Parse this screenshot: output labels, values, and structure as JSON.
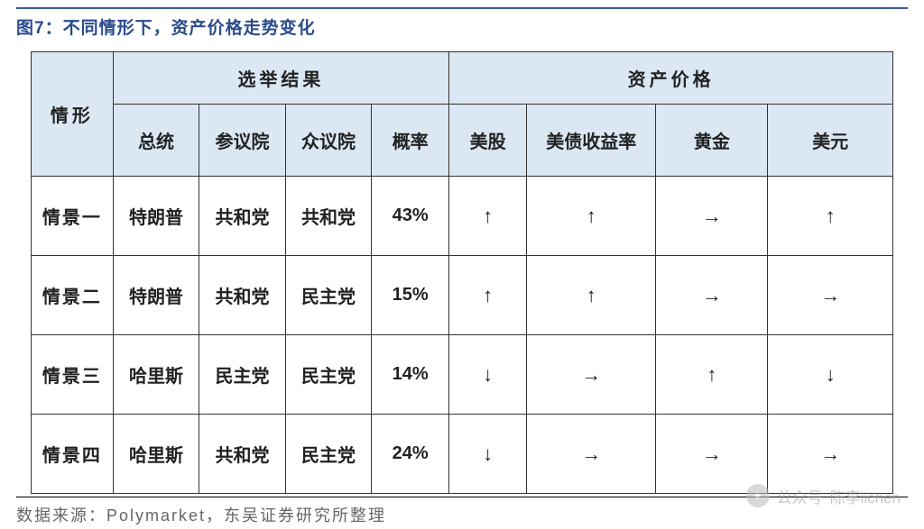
{
  "title": "图7：不同情形下，资产价格走势变化",
  "headerGroups": {
    "election": "选举结果",
    "assets": "资产价格"
  },
  "columns": {
    "scenario": "情形",
    "president": "总统",
    "senate": "参议院",
    "house": "众议院",
    "probability": "概率",
    "stocks": "美股",
    "bonds": "美债收益率",
    "gold": "黄金",
    "usd": "美元"
  },
  "rows": [
    {
      "scenario": "情景一",
      "president": "特朗普",
      "senate": "共和党",
      "house": "共和党",
      "probability": "43%",
      "stocks": "↑",
      "bonds": "↑",
      "gold": "→",
      "usd": "↑"
    },
    {
      "scenario": "情景二",
      "president": "特朗普",
      "senate": "共和党",
      "house": "民主党",
      "probability": "15%",
      "stocks": "↑",
      "bonds": "↑",
      "gold": "→",
      "usd": "→"
    },
    {
      "scenario": "情景三",
      "president": "哈里斯",
      "senate": "民主党",
      "house": "民主党",
      "probability": "14%",
      "stocks": "↓",
      "bonds": "→",
      "gold": "↑",
      "usd": "↓"
    },
    {
      "scenario": "情景四",
      "president": "哈里斯",
      "senate": "共和党",
      "house": "民主党",
      "probability": "24%",
      "stocks": "↓",
      "bonds": "→",
      "gold": "→",
      "usd": "→"
    }
  ],
  "source": "数据来源：Polymarket，东吴证券研究所整理",
  "watermark": {
    "label1": "公众号",
    "label2": "陈李lichen"
  },
  "styling": {
    "title_color": "#2a4b8d",
    "header_bg": "#dbe7f3",
    "border_color": "#333333",
    "rule_color": "#3b5998",
    "font_family": "SimSun"
  }
}
